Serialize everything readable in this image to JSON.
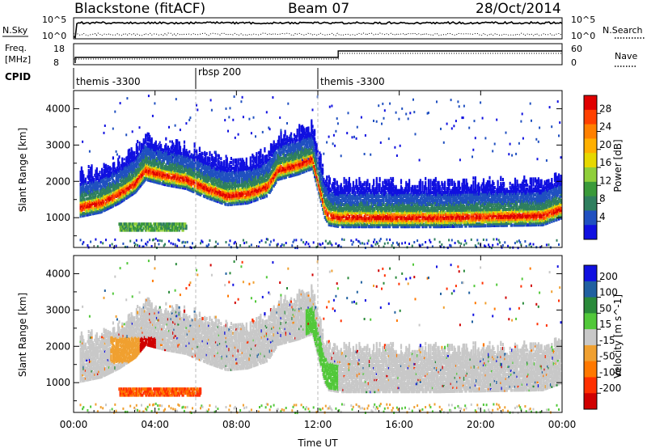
{
  "header": {
    "title_left": "Blackstone (fitACF)",
    "title_center": "Beam 07",
    "title_right": "28/Oct/2014"
  },
  "panels": {
    "noise": {
      "left_label": "N.Sky",
      "right_label": "N.Search",
      "left_ticks": [
        "10^5",
        "10^0"
      ],
      "right_ticks": [
        "10^5",
        "10^0"
      ]
    },
    "freq": {
      "left_label_1": "Freq.",
      "left_label_2": "[MHz]",
      "right_label": "Nave",
      "left_ticks": [
        "18",
        "8"
      ],
      "right_ticks": [
        "60",
        "0"
      ]
    },
    "cpid": {
      "label": "CPID",
      "segments": [
        {
          "label": "themis -3300",
          "start_hour": 0
        },
        {
          "label": "rbsp 200",
          "start_hour": 6
        },
        {
          "label": "themis -3300",
          "start_hour": 12
        }
      ]
    }
  },
  "power_colorbar": {
    "label": "Power [dB]",
    "ticks": [
      "28",
      "24",
      "20",
      "16",
      "12",
      "8",
      "4"
    ],
    "colors": [
      "#e00000",
      "#ff4000",
      "#ff8000",
      "#ffb000",
      "#e6d800",
      "#8fcf3a",
      "#3a9a3a",
      "#2f7f5f",
      "#2050c0",
      "#1010e0"
    ]
  },
  "velocity_colorbar": {
    "label": "Velocity [m s^-1]",
    "ticks": [
      "200",
      "100",
      "50",
      "15",
      "-15",
      "-50",
      "-100",
      "-200"
    ],
    "colors": [
      "#1010e0",
      "#2060a0",
      "#2a8a3a",
      "#52c83a",
      "#c8c8c8",
      "#f0a030",
      "#ff7800",
      "#ff3000",
      "#d00000"
    ]
  },
  "axes": {
    "ylabel": "Slant Range [km]",
    "xlabel": "Time UT",
    "yticks": [
      "4000",
      "3000",
      "2000",
      "1000"
    ],
    "xticks": [
      "00:00",
      "04:00",
      "08:00",
      "12:00",
      "16:00",
      "20:00",
      "00:00"
    ]
  },
  "chart_data": [
    {
      "type": "heatmap",
      "title": "Blackstone (fitACF) Beam 07 28/Oct/2014",
      "quantity": "Power [dB]",
      "xlabel": "Time UT",
      "ylabel": "Slant Range [km]",
      "xlim_hours": [
        0,
        24
      ],
      "ylim_km": [
        180,
        4500
      ],
      "colorbar_range_db": [
        0,
        32
      ],
      "features": [
        {
          "name": "main band",
          "points": [
            [
              0.0,
              1300
            ],
            [
              1.3,
              1450
            ],
            [
              2.2,
              1700
            ],
            [
              3.0,
              2000
            ],
            [
              3.5,
              2350
            ],
            [
              4.5,
              2200
            ],
            [
              5.5,
              2100
            ],
            [
              6.5,
              1850
            ],
            [
              7.5,
              1650
            ],
            [
              8.5,
              1700
            ],
            [
              9.5,
              1900
            ],
            [
              10.0,
              2350
            ],
            [
              11.0,
              2500
            ],
            [
              11.7,
              2650
            ],
            [
              12.3,
              1300
            ],
            [
              12.5,
              1100
            ],
            [
              13.0,
              1050
            ],
            [
              18.0,
              1050
            ],
            [
              23.0,
              1100
            ],
            [
              24.0,
              1300
            ]
          ],
          "peak_db": 30
        },
        {
          "name": "lower patch",
          "start_hour": 2.2,
          "end_hour": 5.5,
          "range_km": 800,
          "peak_db": 14
        }
      ]
    },
    {
      "type": "heatmap",
      "quantity": "Velocity [m s^-1]",
      "xlabel": "Time UT",
      "ylabel": "Slant Range [km]",
      "xlim_hours": [
        0,
        24
      ],
      "ylim_km": [
        180,
        4500
      ],
      "colorbar_range": [
        -250,
        250
      ],
      "features": [
        {
          "name": "ground scatter band",
          "velocity": 0
        },
        {
          "name": "negative velocity patch",
          "start_hour": 3.2,
          "end_hour": 4.0,
          "range_km_min": 1300,
          "range_km_max": 2300,
          "velocity": -220
        },
        {
          "name": "orange patch",
          "start_hour": 1.8,
          "end_hour": 3.2,
          "range_km_min": 1600,
          "range_km_max": 2300,
          "velocity": -60
        },
        {
          "name": "lower flow",
          "start_hour": 2.2,
          "end_hour": 6.2,
          "range_km": 800,
          "velocity": -90
        },
        {
          "name": "positive flow",
          "start_hour": 11.5,
          "end_hour": 13.0,
          "range_km_min": 900,
          "range_km_max": 2800,
          "velocity": 40
        }
      ]
    }
  ]
}
